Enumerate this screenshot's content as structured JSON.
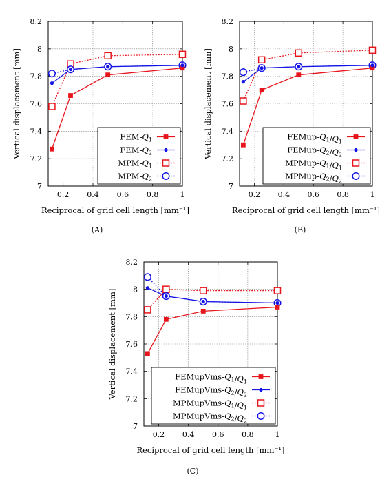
{
  "chart_data": [
    {
      "type": "line",
      "caption": "(A)",
      "xlabel": "Reciprocal of grid cell length [mm⁻¹]",
      "ylabel": "Vertical displacement [mm]",
      "xlim": [
        0.1,
        1.0
      ],
      "ylim": [
        7.0,
        8.2
      ],
      "xticks": [
        "0.2",
        "0.4",
        "0.6",
        "0.8",
        "1"
      ],
      "yticks": [
        "7",
        "7.2",
        "7.4",
        "7.6",
        "7.8",
        "8",
        "8.2"
      ],
      "grid": true,
      "legend_position": "bottom-right",
      "series": [
        {
          "name": "FEM-Q1",
          "color": "#e8141c",
          "line": "solid",
          "marker": "filled-square",
          "x": [
            0.125,
            0.25,
            0.5,
            1.0
          ],
          "y": [
            7.27,
            7.66,
            7.81,
            7.86
          ]
        },
        {
          "name": "FEM-Q2",
          "color": "#1414e6",
          "line": "solid",
          "marker": "filled-circle",
          "x": [
            0.125,
            0.25,
            0.5,
            1.0
          ],
          "y": [
            7.75,
            7.85,
            7.87,
            7.88
          ]
        },
        {
          "name": "MPM-Q1",
          "color": "#e8141c",
          "line": "dotted",
          "marker": "open-square",
          "x": [
            0.125,
            0.25,
            0.5,
            1.0
          ],
          "y": [
            7.58,
            7.89,
            7.95,
            7.96
          ]
        },
        {
          "name": "MPM-Q2",
          "color": "#1414e6",
          "line": "dotted",
          "marker": "open-circle",
          "x": [
            0.125,
            0.25,
            0.5,
            1.0
          ],
          "y": [
            7.82,
            7.85,
            7.87,
            7.88
          ]
        }
      ]
    },
    {
      "type": "line",
      "caption": "(B)",
      "xlabel": "Reciprocal of grid cell length [mm⁻¹]",
      "ylabel": "Vertical displacement [mm]",
      "xlim": [
        0.1,
        1.0
      ],
      "ylim": [
        7.0,
        8.2
      ],
      "xticks": [
        "0.2",
        "0.4",
        "0.6",
        "0.8",
        "1"
      ],
      "yticks": [
        "7",
        "7.2",
        "7.4",
        "7.6",
        "7.8",
        "8",
        "8.2"
      ],
      "grid": true,
      "legend_position": "bottom-right",
      "series": [
        {
          "name": "FEMup-Q1/Q1",
          "color": "#e8141c",
          "line": "solid",
          "marker": "filled-square",
          "x": [
            0.125,
            0.25,
            0.5,
            1.0
          ],
          "y": [
            7.3,
            7.7,
            7.81,
            7.86
          ]
        },
        {
          "name": "FEMup-Q2/Q2",
          "color": "#1414e6",
          "line": "solid",
          "marker": "filled-circle",
          "x": [
            0.125,
            0.25,
            0.5,
            1.0
          ],
          "y": [
            7.76,
            7.86,
            7.87,
            7.88
          ]
        },
        {
          "name": "MPMup-Q1/Q1",
          "color": "#e8141c",
          "line": "dotted",
          "marker": "open-square",
          "x": [
            0.125,
            0.25,
            0.5,
            1.0
          ],
          "y": [
            7.62,
            7.92,
            7.97,
            7.99
          ]
        },
        {
          "name": "MPMup-Q2/Q2",
          "color": "#1414e6",
          "line": "dotted",
          "marker": "open-circle",
          "x": [
            0.125,
            0.25,
            0.5,
            1.0
          ],
          "y": [
            7.83,
            7.86,
            7.87,
            7.88
          ]
        }
      ]
    },
    {
      "type": "line",
      "caption": "(C)",
      "xlabel": "Reciprocal of grid cell length [mm⁻¹]",
      "ylabel": "Vertical displacement [mm]",
      "xlim": [
        0.1,
        1.0
      ],
      "ylim": [
        7.0,
        8.2
      ],
      "xticks": [
        "0.2",
        "0.4",
        "0.6",
        "0.8",
        "1"
      ],
      "yticks": [
        "7",
        "7.2",
        "7.4",
        "7.6",
        "7.8",
        "8",
        "8.2"
      ],
      "grid": true,
      "legend_position": "bottom-right",
      "series": [
        {
          "name": "FEMupVms-Q1/Q1",
          "color": "#e8141c",
          "line": "solid",
          "marker": "filled-square",
          "x": [
            0.125,
            0.25,
            0.5,
            1.0
          ],
          "y": [
            7.53,
            7.78,
            7.84,
            7.87
          ]
        },
        {
          "name": "FEMupVms-Q2/Q2",
          "color": "#1414e6",
          "line": "solid",
          "marker": "filled-circle",
          "x": [
            0.125,
            0.25,
            0.5,
            1.0
          ],
          "y": [
            8.01,
            7.95,
            7.91,
            7.9
          ]
        },
        {
          "name": "MPMupVms-Q1/Q1",
          "color": "#e8141c",
          "line": "dotted",
          "marker": "open-square",
          "x": [
            0.125,
            0.25,
            0.5,
            1.0
          ],
          "y": [
            7.85,
            8.0,
            7.99,
            7.99
          ]
        },
        {
          "name": "MPMupVms-Q2/Q2",
          "color": "#1414e6",
          "line": "dotted",
          "marker": "open-circle",
          "x": [
            0.125,
            0.25,
            0.5,
            1.0
          ],
          "y": [
            8.09,
            7.95,
            7.91,
            7.9
          ]
        }
      ]
    }
  ]
}
